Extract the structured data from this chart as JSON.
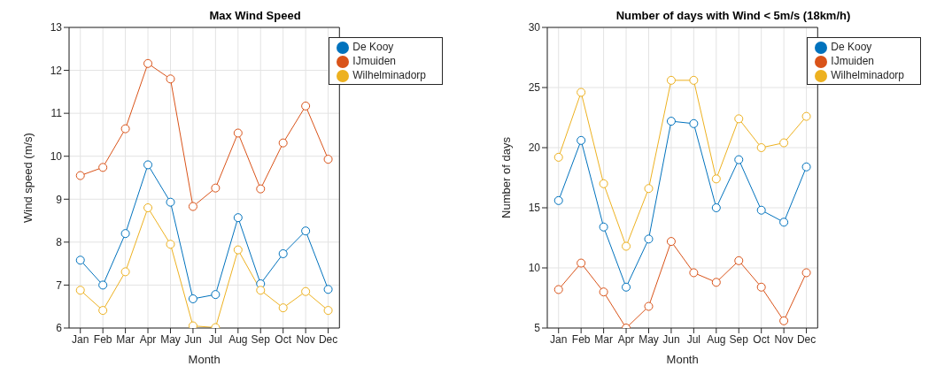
{
  "chart_data": [
    {
      "type": "line",
      "title": "Max Wind Speed",
      "xlabel": "Month",
      "ylabel": "Wind speed (m/s)",
      "categories": [
        "Jan",
        "Feb",
        "Mar",
        "Apr",
        "May",
        "Jun",
        "Jul",
        "Aug",
        "Sep",
        "Oct",
        "Nov",
        "Dec"
      ],
      "series": [
        {
          "name": "De Kooy",
          "color": "#0072bd",
          "values": [
            7.58,
            7.0,
            8.2,
            9.8,
            8.93,
            6.68,
            6.78,
            8.57,
            7.03,
            7.73,
            8.26,
            6.9
          ]
        },
        {
          "name": "IJmuiden",
          "color": "#d95319",
          "values": [
            9.55,
            9.74,
            10.64,
            12.16,
            11.8,
            8.83,
            9.26,
            10.54,
            9.24,
            10.31,
            11.17,
            9.93
          ]
        },
        {
          "name": "Wilhelminadorp",
          "color": "#edb120",
          "values": [
            6.88,
            6.41,
            7.31,
            8.8,
            7.95,
            6.05,
            6.01,
            7.82,
            6.88,
            6.47,
            6.85,
            6.41
          ]
        }
      ],
      "ylim": [
        6,
        13
      ],
      "yticks": [
        6,
        7,
        8,
        9,
        10,
        11,
        12,
        13
      ],
      "grid": true,
      "legend": "top right",
      "marker": "circle",
      "line_style": "solid"
    },
    {
      "type": "line",
      "title": "Number of days with Wind < 5m/s (18km/h)",
      "xlabel": "Month",
      "ylabel": "Number of days",
      "categories": [
        "Jan",
        "Feb",
        "Mar",
        "Apr",
        "May",
        "Jun",
        "Jul",
        "Aug",
        "Sep",
        "Oct",
        "Nov",
        "Dec"
      ],
      "series": [
        {
          "name": "De Kooy",
          "color": "#0072bd",
          "values": [
            15.6,
            20.6,
            13.4,
            8.4,
            12.4,
            22.2,
            22.0,
            15.0,
            19.0,
            14.8,
            13.8,
            18.4
          ]
        },
        {
          "name": "IJmuiden",
          "color": "#d95319",
          "values": [
            8.2,
            10.4,
            8.0,
            5.0,
            6.8,
            12.2,
            9.6,
            8.8,
            10.6,
            8.4,
            5.6,
            9.6
          ]
        },
        {
          "name": "Wilhelminadorp",
          "color": "#edb120",
          "values": [
            19.2,
            24.6,
            17.0,
            11.8,
            16.6,
            25.6,
            25.6,
            17.4,
            22.4,
            20.0,
            20.4,
            22.6
          ]
        }
      ],
      "ylim": [
        5,
        30
      ],
      "yticks": [
        5,
        10,
        15,
        20,
        25,
        30
      ],
      "grid": true,
      "legend": "top right",
      "marker": "circle",
      "line_style": "solid"
    }
  ]
}
